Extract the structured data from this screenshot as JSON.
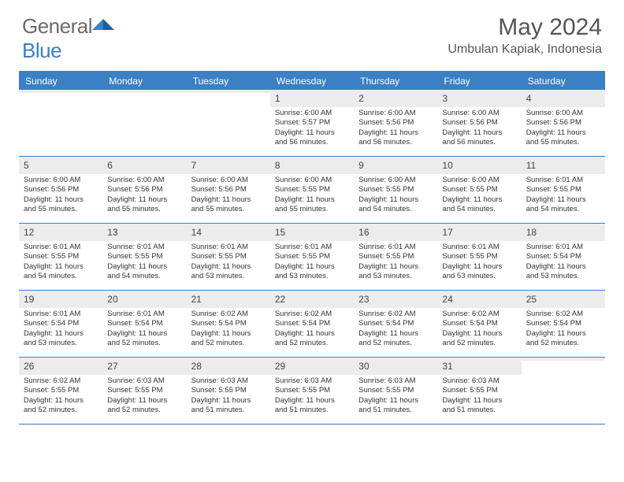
{
  "logo": {
    "text1": "General",
    "text2": "Blue"
  },
  "title": "May 2024",
  "location": "Umbulan Kapiak, Indonesia",
  "colors": {
    "brand": "#3b7fc4",
    "gray": "#ececec",
    "text": "#555"
  },
  "dow": [
    "Sunday",
    "Monday",
    "Tuesday",
    "Wednesday",
    "Thursday",
    "Friday",
    "Saturday"
  ],
  "weeks": [
    [
      {
        "n": "",
        "sr": "",
        "ss": "",
        "dl": ""
      },
      {
        "n": "",
        "sr": "",
        "ss": "",
        "dl": ""
      },
      {
        "n": "",
        "sr": "",
        "ss": "",
        "dl": ""
      },
      {
        "n": "1",
        "sr": "Sunrise: 6:00 AM",
        "ss": "Sunset: 5:57 PM",
        "dl": "Daylight: 11 hours and 56 minutes."
      },
      {
        "n": "2",
        "sr": "Sunrise: 6:00 AM",
        "ss": "Sunset: 5:56 PM",
        "dl": "Daylight: 11 hours and 56 minutes."
      },
      {
        "n": "3",
        "sr": "Sunrise: 6:00 AM",
        "ss": "Sunset: 5:56 PM",
        "dl": "Daylight: 11 hours and 56 minutes."
      },
      {
        "n": "4",
        "sr": "Sunrise: 6:00 AM",
        "ss": "Sunset: 5:56 PM",
        "dl": "Daylight: 11 hours and 55 minutes."
      }
    ],
    [
      {
        "n": "5",
        "sr": "Sunrise: 6:00 AM",
        "ss": "Sunset: 5:56 PM",
        "dl": "Daylight: 11 hours and 55 minutes."
      },
      {
        "n": "6",
        "sr": "Sunrise: 6:00 AM",
        "ss": "Sunset: 5:56 PM",
        "dl": "Daylight: 11 hours and 55 minutes."
      },
      {
        "n": "7",
        "sr": "Sunrise: 6:00 AM",
        "ss": "Sunset: 5:56 PM",
        "dl": "Daylight: 11 hours and 55 minutes."
      },
      {
        "n": "8",
        "sr": "Sunrise: 6:00 AM",
        "ss": "Sunset: 5:55 PM",
        "dl": "Daylight: 11 hours and 55 minutes."
      },
      {
        "n": "9",
        "sr": "Sunrise: 6:00 AM",
        "ss": "Sunset: 5:55 PM",
        "dl": "Daylight: 11 hours and 54 minutes."
      },
      {
        "n": "10",
        "sr": "Sunrise: 6:00 AM",
        "ss": "Sunset: 5:55 PM",
        "dl": "Daylight: 11 hours and 54 minutes."
      },
      {
        "n": "11",
        "sr": "Sunrise: 6:01 AM",
        "ss": "Sunset: 5:55 PM",
        "dl": "Daylight: 11 hours and 54 minutes."
      }
    ],
    [
      {
        "n": "12",
        "sr": "Sunrise: 6:01 AM",
        "ss": "Sunset: 5:55 PM",
        "dl": "Daylight: 11 hours and 54 minutes."
      },
      {
        "n": "13",
        "sr": "Sunrise: 6:01 AM",
        "ss": "Sunset: 5:55 PM",
        "dl": "Daylight: 11 hours and 54 minutes."
      },
      {
        "n": "14",
        "sr": "Sunrise: 6:01 AM",
        "ss": "Sunset: 5:55 PM",
        "dl": "Daylight: 11 hours and 53 minutes."
      },
      {
        "n": "15",
        "sr": "Sunrise: 6:01 AM",
        "ss": "Sunset: 5:55 PM",
        "dl": "Daylight: 11 hours and 53 minutes."
      },
      {
        "n": "16",
        "sr": "Sunrise: 6:01 AM",
        "ss": "Sunset: 5:55 PM",
        "dl": "Daylight: 11 hours and 53 minutes."
      },
      {
        "n": "17",
        "sr": "Sunrise: 6:01 AM",
        "ss": "Sunset: 5:55 PM",
        "dl": "Daylight: 11 hours and 53 minutes."
      },
      {
        "n": "18",
        "sr": "Sunrise: 6:01 AM",
        "ss": "Sunset: 5:54 PM",
        "dl": "Daylight: 11 hours and 53 minutes."
      }
    ],
    [
      {
        "n": "19",
        "sr": "Sunrise: 6:01 AM",
        "ss": "Sunset: 5:54 PM",
        "dl": "Daylight: 11 hours and 53 minutes."
      },
      {
        "n": "20",
        "sr": "Sunrise: 6:01 AM",
        "ss": "Sunset: 5:54 PM",
        "dl": "Daylight: 11 hours and 52 minutes."
      },
      {
        "n": "21",
        "sr": "Sunrise: 6:02 AM",
        "ss": "Sunset: 5:54 PM",
        "dl": "Daylight: 11 hours and 52 minutes."
      },
      {
        "n": "22",
        "sr": "Sunrise: 6:02 AM",
        "ss": "Sunset: 5:54 PM",
        "dl": "Daylight: 11 hours and 52 minutes."
      },
      {
        "n": "23",
        "sr": "Sunrise: 6:02 AM",
        "ss": "Sunset: 5:54 PM",
        "dl": "Daylight: 11 hours and 52 minutes."
      },
      {
        "n": "24",
        "sr": "Sunrise: 6:02 AM",
        "ss": "Sunset: 5:54 PM",
        "dl": "Daylight: 11 hours and 52 minutes."
      },
      {
        "n": "25",
        "sr": "Sunrise: 6:02 AM",
        "ss": "Sunset: 5:54 PM",
        "dl": "Daylight: 11 hours and 52 minutes."
      }
    ],
    [
      {
        "n": "26",
        "sr": "Sunrise: 6:02 AM",
        "ss": "Sunset: 5:55 PM",
        "dl": "Daylight: 11 hours and 52 minutes."
      },
      {
        "n": "27",
        "sr": "Sunrise: 6:03 AM",
        "ss": "Sunset: 5:55 PM",
        "dl": "Daylight: 11 hours and 52 minutes."
      },
      {
        "n": "28",
        "sr": "Sunrise: 6:03 AM",
        "ss": "Sunset: 5:55 PM",
        "dl": "Daylight: 11 hours and 51 minutes."
      },
      {
        "n": "29",
        "sr": "Sunrise: 6:03 AM",
        "ss": "Sunset: 5:55 PM",
        "dl": "Daylight: 11 hours and 51 minutes."
      },
      {
        "n": "30",
        "sr": "Sunrise: 6:03 AM",
        "ss": "Sunset: 5:55 PM",
        "dl": "Daylight: 11 hours and 51 minutes."
      },
      {
        "n": "31",
        "sr": "Sunrise: 6:03 AM",
        "ss": "Sunset: 5:55 PM",
        "dl": "Daylight: 11 hours and 51 minutes."
      },
      {
        "n": "",
        "sr": "",
        "ss": "",
        "dl": ""
      }
    ]
  ]
}
